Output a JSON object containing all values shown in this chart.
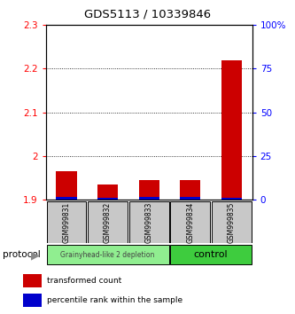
{
  "title": "GDS5113 / 10339846",
  "samples": [
    "GSM999831",
    "GSM999832",
    "GSM999833",
    "GSM999834",
    "GSM999835"
  ],
  "red_values": [
    1.965,
    1.935,
    1.945,
    1.945,
    2.22
  ],
  "blue_values": [
    1.906,
    1.904,
    1.905,
    1.905,
    1.904
  ],
  "ylim_left": [
    1.9,
    2.3
  ],
  "ylim_right": [
    0,
    100
  ],
  "yticks_left": [
    1.9,
    2.0,
    2.1,
    2.2,
    2.3
  ],
  "ytick_labels_left": [
    "1.9",
    "2",
    "2.1",
    "2.2",
    "2.3"
  ],
  "yticks_right": [
    0,
    25,
    50,
    75,
    100
  ],
  "ytick_labels_right": [
    "0",
    "25",
    "50",
    "75",
    "100%"
  ],
  "group1_color": "#90EE90",
  "group2_color": "#3ECC3E",
  "group1_label": "Grainyhead-like 2 depletion",
  "group2_label": "control",
  "protocol_label": "protocol",
  "legend_red": "transformed count",
  "legend_blue": "percentile rank within the sample",
  "bar_width": 0.5,
  "red_color": "#CC0000",
  "blue_color": "#0000CC",
  "base_value": 1.9,
  "hline_vals": [
    2.0,
    2.1,
    2.2
  ]
}
